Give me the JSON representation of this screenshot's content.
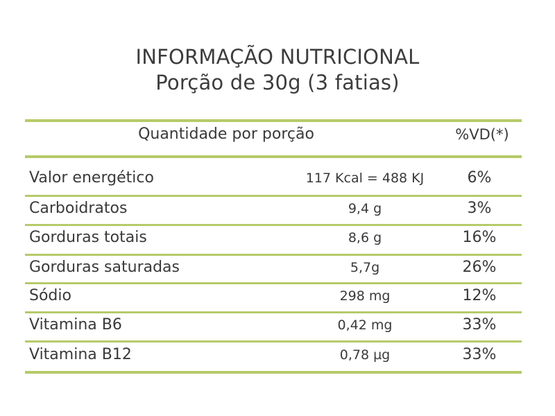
{
  "title_line1": "INFORMAÇÃO NUTRICIONAL",
  "title_line2": "Porção de 30g (3 fatias)",
  "header": {
    "quantity_label": "Quantidade por porção",
    "vd_label": "%VD(*)"
  },
  "rows": [
    {
      "name": "Valor energético",
      "amount": "117 Kcal = 488 KJ",
      "vd": "6%"
    },
    {
      "name": "Carboidratos",
      "amount": "9,4 g",
      "vd": "3%"
    },
    {
      "name": "Gorduras totais",
      "amount": "8,6 g",
      "vd": "16%"
    },
    {
      "name": "Gorduras saturadas",
      "amount": "5,7g",
      "vd": "26%"
    },
    {
      "name": "Sódio",
      "amount": "298 mg",
      "vd": "12%"
    },
    {
      "name": "Vitamina B6",
      "amount": "0,42 mg",
      "vd": "33%"
    },
    {
      "name": "Vitamina B12",
      "amount": "0,78 µg",
      "vd": "33%"
    }
  ],
  "colors": {
    "rule": "#b5cb6a",
    "text": "#3a3a3a"
  }
}
